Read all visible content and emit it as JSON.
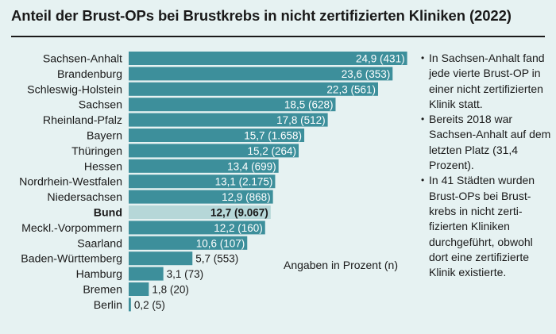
{
  "title": "Anteil der Brust-OPs bei Brustkrebs in nicht zertifizierten Kliniken (2022)",
  "note": "Angaben in Prozent (n)",
  "sidebar": [
    "In Sachsen-Anhalt fand jede vierte Brust-OP in einer nicht zertifizierten Klinik statt.",
    "Bereits 2018 war Sachsen-Anhalt auf dem letzten Platz (31,4 Prozent).",
    "In 41 Städten wurden Brust-OPs bei Brust­krebs in nicht zerti­fizierten Kliniken durchgeführt, obwohl dort eine zertifizierte Klinik existierte."
  ],
  "colors": {
    "bar": "#3d8f9b",
    "highlight": "#b6d7d8",
    "background": "#e6f2f2",
    "text": "#1a1a1a"
  },
  "chart_data": {
    "type": "bar",
    "orientation": "horizontal",
    "title": "Anteil der Brust-OPs bei Brustkrebs in nicht zertifizierten Kliniken (2022)",
    "xlabel": "Angaben in Prozent (n)",
    "ylabel": "",
    "xlim": [
      0,
      25
    ],
    "grid": false,
    "highlight": "Bund",
    "categories": [
      "Sachsen-Anhalt",
      "Brandenburg",
      "Schleswig-Holstein",
      "Sachsen",
      "Rheinland-Pfalz",
      "Bayern",
      "Thüringen",
      "Hessen",
      "Nordrhein-Westfalen",
      "Niedersachsen",
      "Bund",
      "Meckl.-Vorpommern",
      "Saarland",
      "Baden-Württemberg",
      "Hamburg",
      "Bremen",
      "Berlin"
    ],
    "values": [
      24.9,
      23.6,
      22.3,
      18.5,
      17.8,
      15.7,
      15.2,
      13.4,
      13.1,
      12.9,
      12.7,
      12.2,
      10.6,
      5.7,
      3.1,
      1.8,
      0.2
    ],
    "labels": [
      "24,9 (431)",
      "23,6 (353)",
      "22,3 (561)",
      "18,5 (628)",
      "17,8 (512)",
      "15,7 (1.658)",
      "15,2 (264)",
      "13,4 (699)",
      "13,1 (2.175)",
      "12,9 (868)",
      "12,7 (9.067)",
      "12,2 (160)",
      "10,6 (107)",
      "5,7 (553)",
      "3,1 (73)",
      "1,8 (20)",
      "0,2 (5)"
    ]
  }
}
